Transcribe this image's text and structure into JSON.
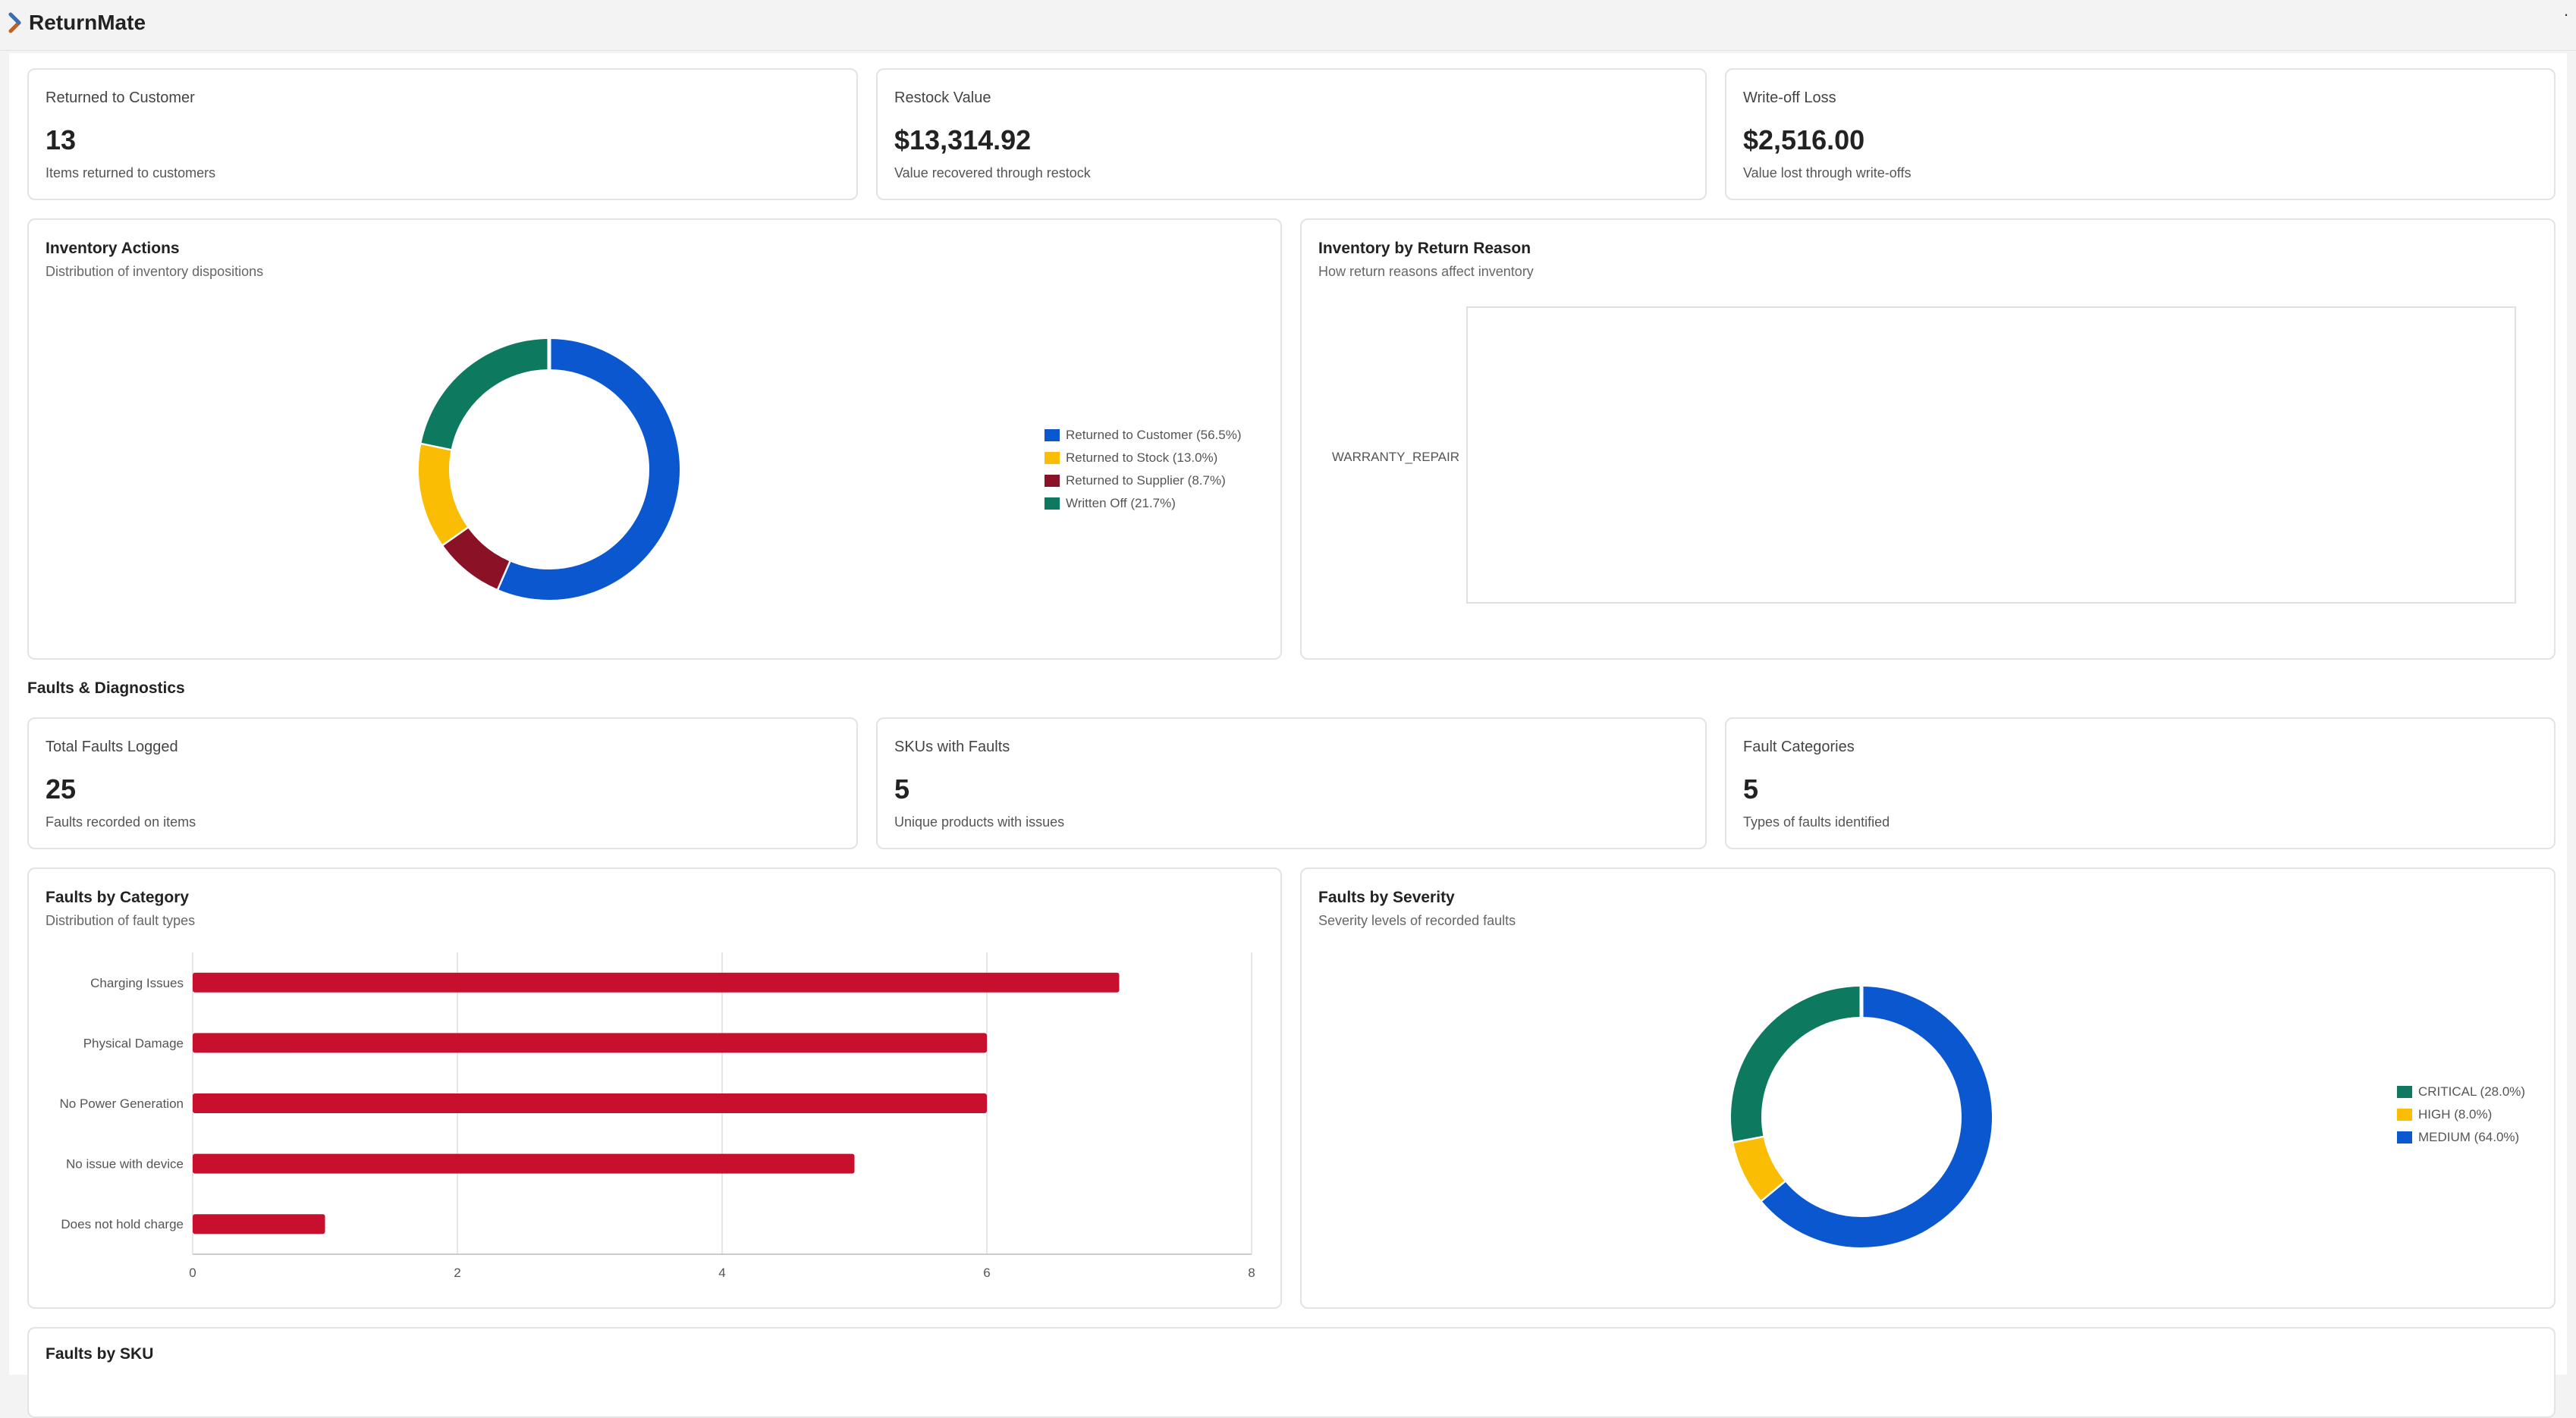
{
  "app": {
    "title": "ReturnMate",
    "menu_icon": "more-vertical-icon"
  },
  "colors": {
    "blue": "#0b57d0",
    "yellow": "#fbbc04",
    "maroon": "#8a1126",
    "green": "#0d7a5f",
    "red": "#c8102e"
  },
  "inventory_stats": [
    {
      "title": "Returned to Customer",
      "value": "13",
      "subtitle": "Items returned to customers"
    },
    {
      "title": "Restock Value",
      "value": "$13,314.92",
      "subtitle": "Value recovered through restock"
    },
    {
      "title": "Write-off Loss",
      "value": "$2,516.00",
      "subtitle": "Value lost through write-offs"
    }
  ],
  "inventory_actions": {
    "title": "Inventory Actions",
    "subtitle": "Distribution of inventory dispositions",
    "legend": [
      "Returned to Customer (56.5%)",
      "Returned to Stock (13.0%)",
      "Returned to Supplier (8.7%)",
      "Written Off (21.7%)"
    ]
  },
  "inventory_by_reason": {
    "title": "Inventory by Return Reason",
    "subtitle": "How return reasons affect inventory"
  },
  "faults_section": {
    "heading": "Faults & Diagnostics"
  },
  "fault_stats": [
    {
      "title": "Total Faults Logged",
      "value": "25",
      "subtitle": "Faults recorded on items"
    },
    {
      "title": "SKUs with Faults",
      "value": "5",
      "subtitle": "Unique products with issues"
    },
    {
      "title": "Fault Categories",
      "value": "5",
      "subtitle": "Types of faults identified"
    }
  ],
  "faults_by_category": {
    "title": "Faults by Category",
    "subtitle": "Distribution of fault types"
  },
  "faults_by_severity": {
    "title": "Faults by Severity",
    "subtitle": "Severity levels of recorded faults",
    "legend": [
      "CRITICAL (28.0%)",
      "HIGH (8.0%)",
      "MEDIUM (64.0%)"
    ]
  },
  "faults_by_sku": {
    "title": "Faults by SKU"
  },
  "chart_data": [
    {
      "type": "pie",
      "title": "Inventory Actions",
      "labels": [
        "Returned to Customer",
        "Returned to Supplier",
        "Returned to Stock",
        "Written Off"
      ],
      "values": [
        56.5,
        8.7,
        13.0,
        21.7
      ],
      "colors": [
        "#0b57d0",
        "#8a1126",
        "#fbbc04",
        "#0d7a5f"
      ],
      "donut": true,
      "legend_position": "right"
    },
    {
      "type": "bar",
      "orientation": "horizontal",
      "title": "Inventory by Return Reason",
      "categories": [
        "WARRANTY_REPAIR"
      ],
      "values": [
        0
      ]
    },
    {
      "type": "bar",
      "orientation": "horizontal",
      "title": "Faults by Category",
      "categories": [
        "Charging Issues",
        "Physical Damage",
        "No Power Generation",
        "No issue with device",
        "Does not hold charge"
      ],
      "values": [
        7,
        6,
        6,
        5,
        1
      ],
      "xlim": [
        0,
        8
      ],
      "xticks": [
        "0",
        "2",
        "4",
        "6",
        "8"
      ],
      "color": "#c8102e",
      "grid": true
    },
    {
      "type": "pie",
      "title": "Faults by Severity",
      "labels": [
        "MEDIUM",
        "HIGH",
        "CRITICAL"
      ],
      "values": [
        64.0,
        8.0,
        28.0
      ],
      "colors": [
        "#0b57d0",
        "#fbbc04",
        "#0d7a5f"
      ],
      "donut": true,
      "legend_position": "right"
    }
  ]
}
